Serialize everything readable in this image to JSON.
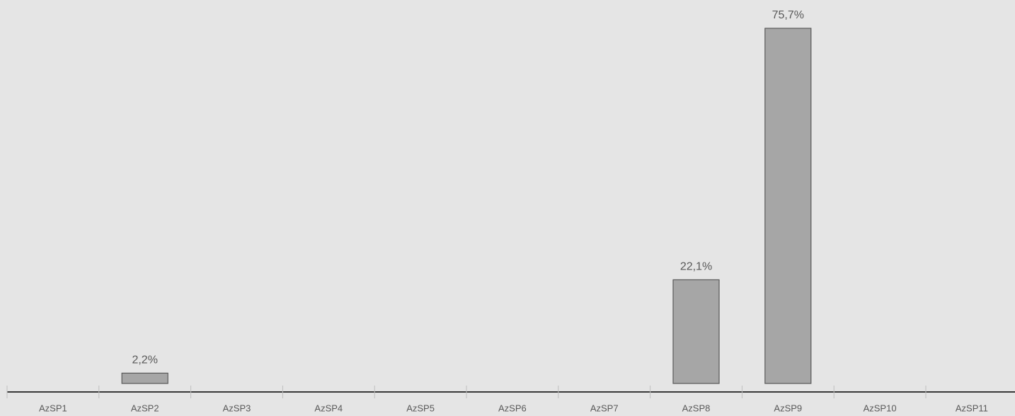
{
  "chart_data": {
    "type": "bar",
    "categories": [
      "AzSP1",
      "AzSP2",
      "AzSP3",
      "AzSP4",
      "AzSP5",
      "AzSP6",
      "AzSP7",
      "AzSP8",
      "AzSP9",
      "AzSP10",
      "AzSP11"
    ],
    "values": [
      null,
      2.2,
      null,
      null,
      null,
      null,
      null,
      22.1,
      75.7,
      null,
      null
    ],
    "value_labels": [
      null,
      "2,2%",
      null,
      null,
      null,
      null,
      null,
      "22,1%",
      "75,7%",
      null,
      null
    ],
    "color": "#a6a6a6"
  }
}
